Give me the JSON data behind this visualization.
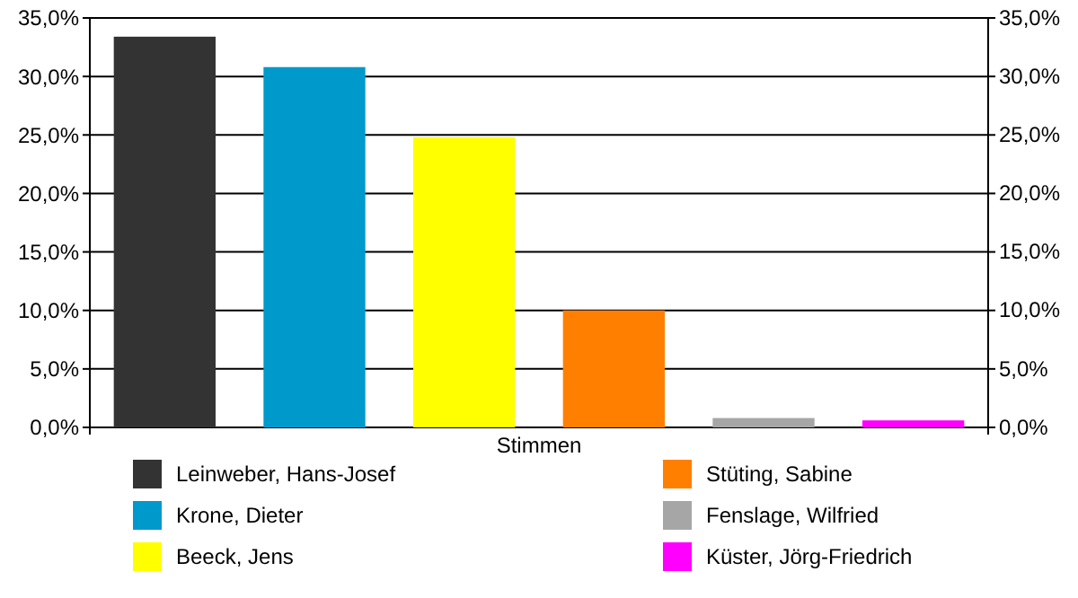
{
  "chart_data": {
    "type": "bar",
    "categories": [
      "Stimmen"
    ],
    "series": [
      {
        "name": "Leinweber, Hans-Josef",
        "color": "#333333",
        "values": [
          33.4
        ]
      },
      {
        "name": "Krone, Dieter",
        "color": "#0099cc",
        "values": [
          30.8
        ]
      },
      {
        "name": "Beeck, Jens",
        "color": "#ffff00",
        "values": [
          24.8
        ]
      },
      {
        "name": "Stüting, Sabine",
        "color": "#ff8000",
        "values": [
          10.0
        ]
      },
      {
        "name": "Fenslage, Wilfried",
        "color": "#a6a6a6",
        "values": [
          0.8
        ]
      },
      {
        "name": "Küster, Jörg-Friedrich",
        "color": "#ff00ff",
        "values": [
          0.6
        ]
      }
    ],
    "ylim": [
      0,
      35
    ],
    "yticks": [
      {
        "value": 0,
        "label": "0,0%"
      },
      {
        "value": 5,
        "label": "5,0%"
      },
      {
        "value": 10,
        "label": "10,0%"
      },
      {
        "value": 15,
        "label": "15,0%"
      },
      {
        "value": 20,
        "label": "20,0%"
      },
      {
        "value": 25,
        "label": "25,0%"
      },
      {
        "value": 30,
        "label": "30,0%"
      },
      {
        "value": 35,
        "label": "35,0%"
      }
    ],
    "grid": "y",
    "legend": "bottom"
  }
}
